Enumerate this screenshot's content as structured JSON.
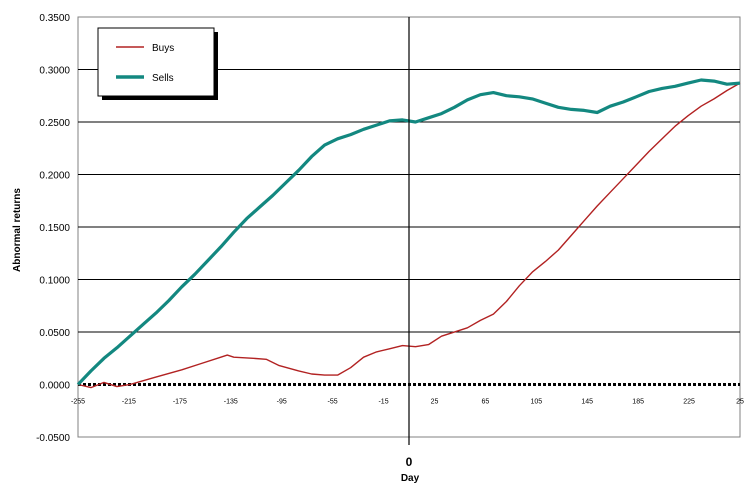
{
  "chart_data": {
    "type": "line",
    "title": "",
    "xlabel": "Day",
    "ylabel": "Abnormal returns",
    "zero_label": "0",
    "xlim": [
      -255,
      255
    ],
    "ylim": [
      -0.05,
      0.35
    ],
    "y_ticks": [
      "-0.0500",
      "0.0000",
      "0.0500",
      "0.1000",
      "0.1500",
      "0.2000",
      "0.2500",
      "0.3000",
      "0.3500"
    ],
    "x_ticks": [
      "-255",
      "-215",
      "-175",
      "-135",
      "-95",
      "-55",
      "-15",
      "25",
      "65",
      "105",
      "145",
      "185",
      "225",
      "25"
    ],
    "grid": "horizontal",
    "legend_position": "top-left",
    "series": [
      {
        "name": "Buys",
        "color": "#b22222",
        "points": [
          [
            -255,
            0.0
          ],
          [
            -245,
            -0.003
          ],
          [
            -235,
            0.002
          ],
          [
            -225,
            -0.002
          ],
          [
            -215,
            0.0
          ],
          [
            -195,
            0.007
          ],
          [
            -175,
            0.014
          ],
          [
            -160,
            0.02
          ],
          [
            -145,
            0.026
          ],
          [
            -140,
            0.028
          ],
          [
            -135,
            0.026
          ],
          [
            -120,
            0.025
          ],
          [
            -110,
            0.024
          ],
          [
            -100,
            0.018
          ],
          [
            -85,
            0.013
          ],
          [
            -75,
            0.01
          ],
          [
            -65,
            0.009
          ],
          [
            -55,
            0.009
          ],
          [
            -45,
            0.016
          ],
          [
            -35,
            0.026
          ],
          [
            -25,
            0.031
          ],
          [
            -15,
            0.034
          ],
          [
            -5,
            0.037
          ],
          [
            5,
            0.036
          ],
          [
            15,
            0.038
          ],
          [
            25,
            0.046
          ],
          [
            45,
            0.054
          ],
          [
            55,
            0.061
          ],
          [
            65,
            0.067
          ],
          [
            75,
            0.079
          ],
          [
            85,
            0.094
          ],
          [
            95,
            0.107
          ],
          [
            105,
            0.117
          ],
          [
            115,
            0.128
          ],
          [
            125,
            0.142
          ],
          [
            135,
            0.156
          ],
          [
            145,
            0.17
          ],
          [
            155,
            0.183
          ],
          [
            165,
            0.196
          ],
          [
            175,
            0.209
          ],
          [
            185,
            0.222
          ],
          [
            195,
            0.234
          ],
          [
            205,
            0.246
          ],
          [
            215,
            0.256
          ],
          [
            225,
            0.265
          ],
          [
            235,
            0.272
          ],
          [
            245,
            0.28
          ],
          [
            255,
            0.287
          ]
        ]
      },
      {
        "name": "Sells",
        "color": "#138880",
        "points": [
          [
            -255,
            0.0
          ],
          [
            -245,
            0.013
          ],
          [
            -235,
            0.025
          ],
          [
            -225,
            0.035
          ],
          [
            -215,
            0.046
          ],
          [
            -205,
            0.057
          ],
          [
            -195,
            0.068
          ],
          [
            -185,
            0.08
          ],
          [
            -175,
            0.093
          ],
          [
            -165,
            0.105
          ],
          [
            -155,
            0.118
          ],
          [
            -145,
            0.131
          ],
          [
            -135,
            0.145
          ],
          [
            -125,
            0.158
          ],
          [
            -115,
            0.169
          ],
          [
            -105,
            0.18
          ],
          [
            -95,
            0.192
          ],
          [
            -85,
            0.204
          ],
          [
            -75,
            0.217
          ],
          [
            -65,
            0.228
          ],
          [
            -55,
            0.234
          ],
          [
            -45,
            0.238
          ],
          [
            -35,
            0.243
          ],
          [
            -25,
            0.247
          ],
          [
            -15,
            0.251
          ],
          [
            -5,
            0.252
          ],
          [
            5,
            0.25
          ],
          [
            15,
            0.254
          ],
          [
            25,
            0.258
          ],
          [
            35,
            0.264
          ],
          [
            45,
            0.271
          ],
          [
            55,
            0.276
          ],
          [
            65,
            0.278
          ],
          [
            75,
            0.275
          ],
          [
            85,
            0.274
          ],
          [
            95,
            0.272
          ],
          [
            105,
            0.268
          ],
          [
            115,
            0.264
          ],
          [
            125,
            0.262
          ],
          [
            135,
            0.261
          ],
          [
            145,
            0.259
          ],
          [
            155,
            0.265
          ],
          [
            165,
            0.269
          ],
          [
            175,
            0.274
          ],
          [
            185,
            0.279
          ],
          [
            195,
            0.282
          ],
          [
            205,
            0.284
          ],
          [
            215,
            0.287
          ],
          [
            225,
            0.29
          ],
          [
            235,
            0.289
          ],
          [
            245,
            0.286
          ],
          [
            255,
            0.287
          ]
        ]
      }
    ]
  }
}
